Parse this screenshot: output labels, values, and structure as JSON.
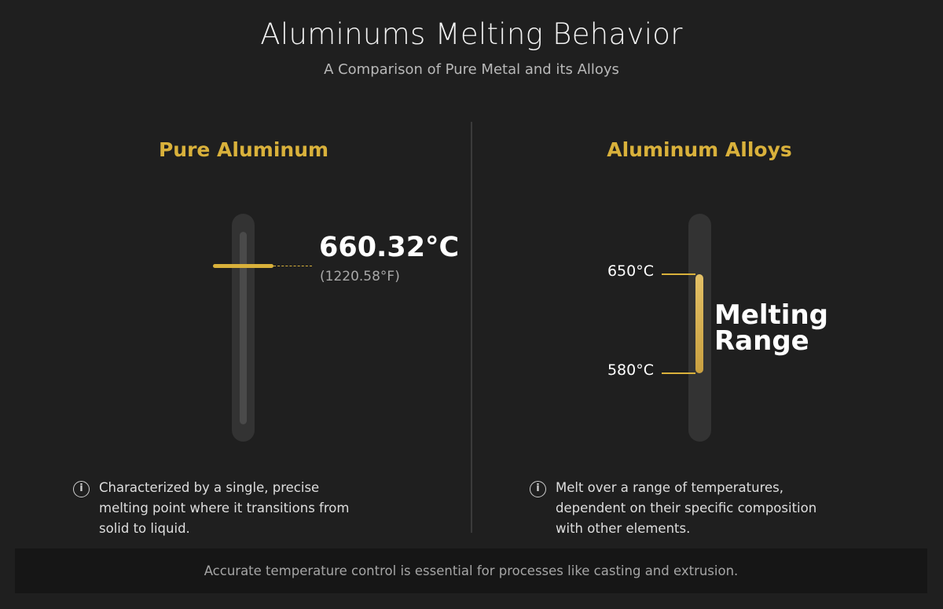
{
  "header": {
    "title": "Aluminums Melting Behavior",
    "subtitle": "A Comparison of Pure Metal and its Alloys"
  },
  "pure": {
    "heading": "Pure Aluminum",
    "melting_point_c": "660.32°C",
    "melting_point_f": "(1220.58°F)",
    "caption": "Characterized by a single, precise melting point where it transitions from solid to liquid.",
    "icon": "info-icon"
  },
  "alloys": {
    "heading": "Aluminum Alloys",
    "upper_label": "650°C",
    "lower_label": "580°C",
    "range_label_1": "Melting",
    "range_label_2": "Range",
    "caption": "Melt over a range of temperatures, dependent on their specific composition with other elements.",
    "icon": "info-icon"
  },
  "footer": {
    "note": "Accurate temperature control is essential for processes like casting and extrusion."
  },
  "colors": {
    "accent": "#d9b13b",
    "background": "#1f1f1f"
  }
}
